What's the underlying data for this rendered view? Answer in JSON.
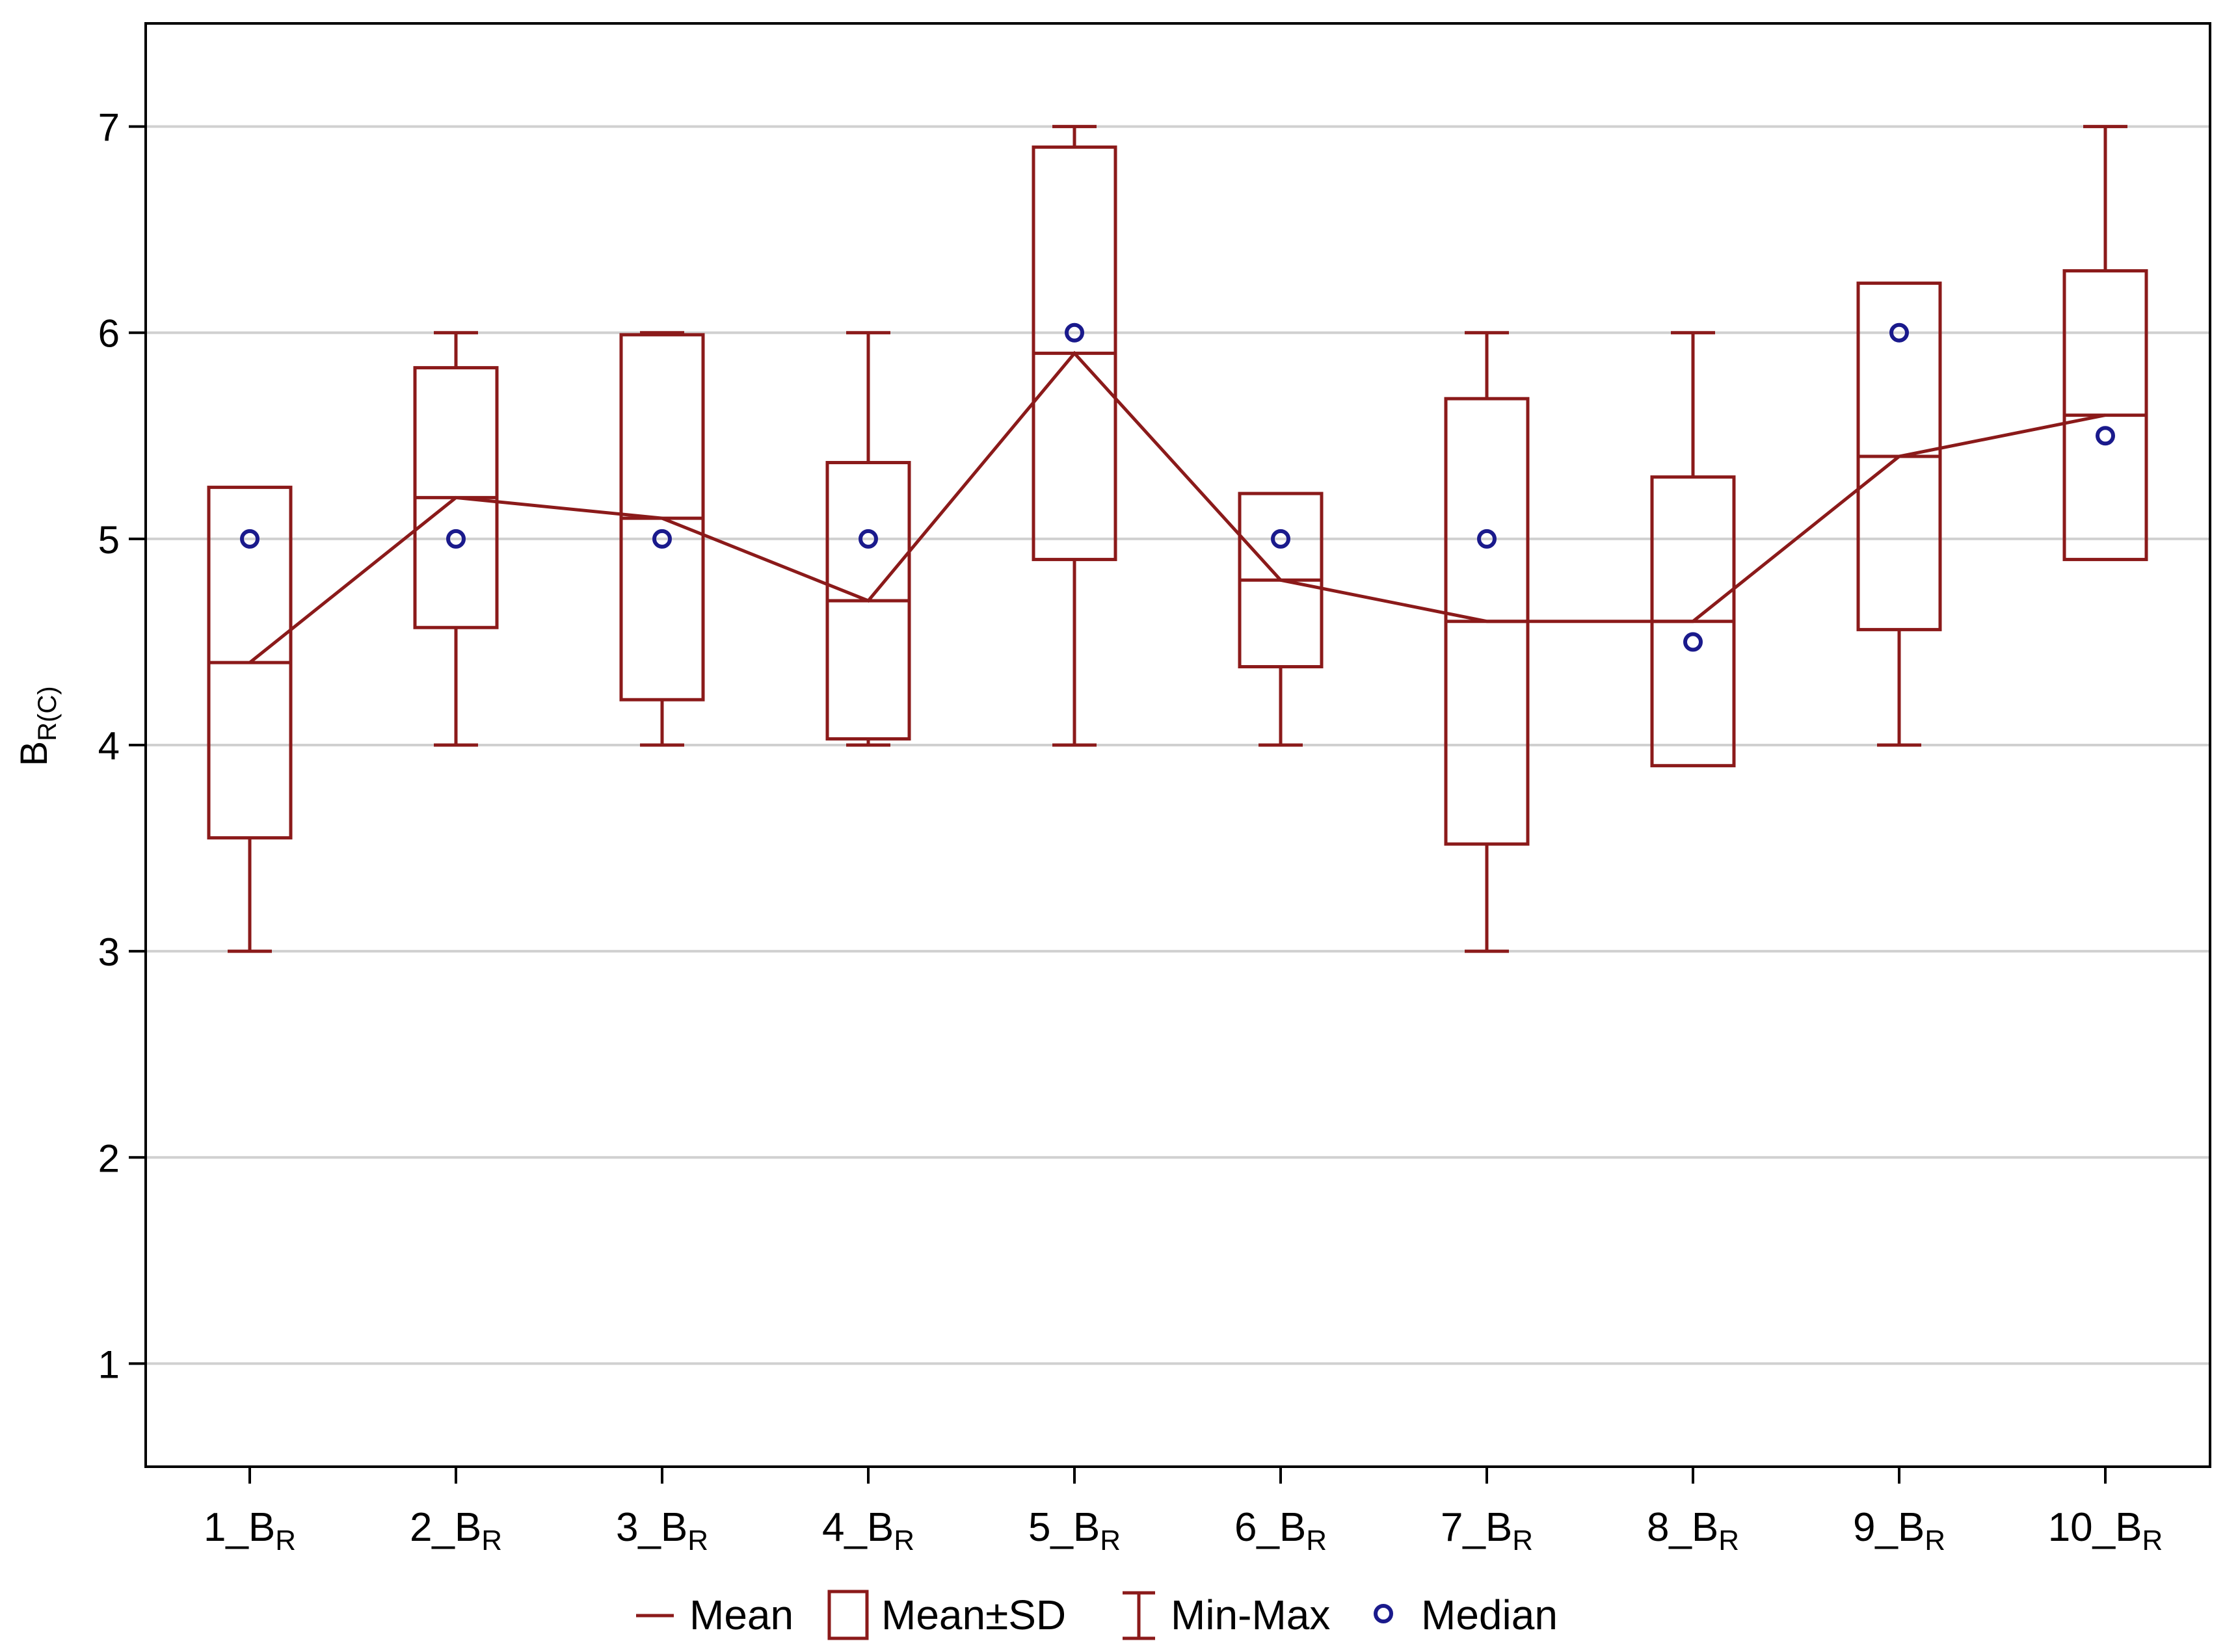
{
  "colors": {
    "series": "#8b1a1a",
    "median": "#1a1a8c",
    "grid": "#d0d0d0",
    "axis": "#000000"
  },
  "chart_data": {
    "type": "box",
    "title": "",
    "xlabel": "",
    "ylabel": {
      "main": "B",
      "sub": "R(C)"
    },
    "ylim": [
      0.5,
      7.5
    ],
    "yticks": [
      1,
      2,
      3,
      4,
      5,
      6,
      7
    ],
    "grid": true,
    "categories": [
      {
        "main": "1_B",
        "sub": "R"
      },
      {
        "main": "2_B",
        "sub": "R"
      },
      {
        "main": "3_B",
        "sub": "R"
      },
      {
        "main": "4_B",
        "sub": "R"
      },
      {
        "main": "5_B",
        "sub": "R"
      },
      {
        "main": "6_B",
        "sub": "R"
      },
      {
        "main": "7_B",
        "sub": "R"
      },
      {
        "main": "8_B",
        "sub": "R"
      },
      {
        "main": "9_B",
        "sub": "R"
      },
      {
        "main": "10_B",
        "sub": "R"
      }
    ],
    "mean": [
      4.4,
      5.2,
      5.1,
      4.7,
      5.9,
      4.8,
      4.6,
      4.6,
      5.4,
      5.6
    ],
    "sd_low": [
      3.55,
      4.57,
      4.22,
      4.03,
      4.9,
      4.38,
      3.52,
      3.9,
      4.56,
      4.9
    ],
    "sd_high": [
      5.25,
      5.83,
      5.99,
      5.37,
      6.9,
      5.22,
      5.68,
      5.3,
      6.24,
      6.3
    ],
    "min": [
      3,
      4,
      4,
      4,
      4,
      4,
      3,
      3.9,
      4,
      4.9
    ],
    "max": [
      5.25,
      6,
      6,
      6,
      7,
      5.22,
      6,
      6,
      6.24,
      7
    ],
    "median": [
      5,
      5,
      5,
      5,
      6,
      5,
      5,
      4.5,
      6,
      5.5
    ],
    "legend": {
      "position": "bottom",
      "items": [
        "Mean",
        "Mean±SD",
        "Min-Max",
        "Median"
      ]
    }
  }
}
